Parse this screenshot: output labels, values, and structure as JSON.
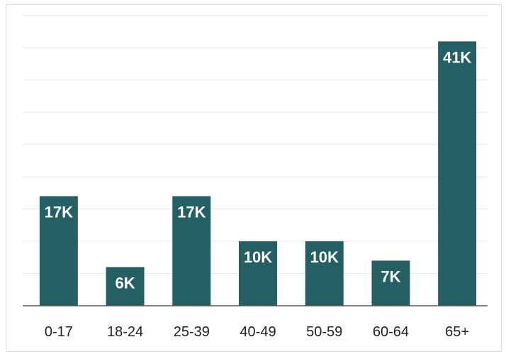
{
  "chart_data": {
    "type": "bar",
    "categories": [
      "0-17",
      "18-24",
      "25-39",
      "40-49",
      "50-59",
      "60-64",
      "65+"
    ],
    "values": [
      17,
      6,
      17,
      10,
      10,
      7,
      41
    ],
    "data_labels": [
      "17K",
      "6K",
      "17K",
      "10K",
      "10K",
      "7K",
      "41K"
    ],
    "unit": "K",
    "title": "",
    "xlabel": "",
    "ylabel": "",
    "ylim": [
      0,
      45
    ],
    "grid": true,
    "legend": "none",
    "bar_color": "#245f63",
    "grid_color": "#e6e6e6",
    "axis_color": "#555555"
  }
}
